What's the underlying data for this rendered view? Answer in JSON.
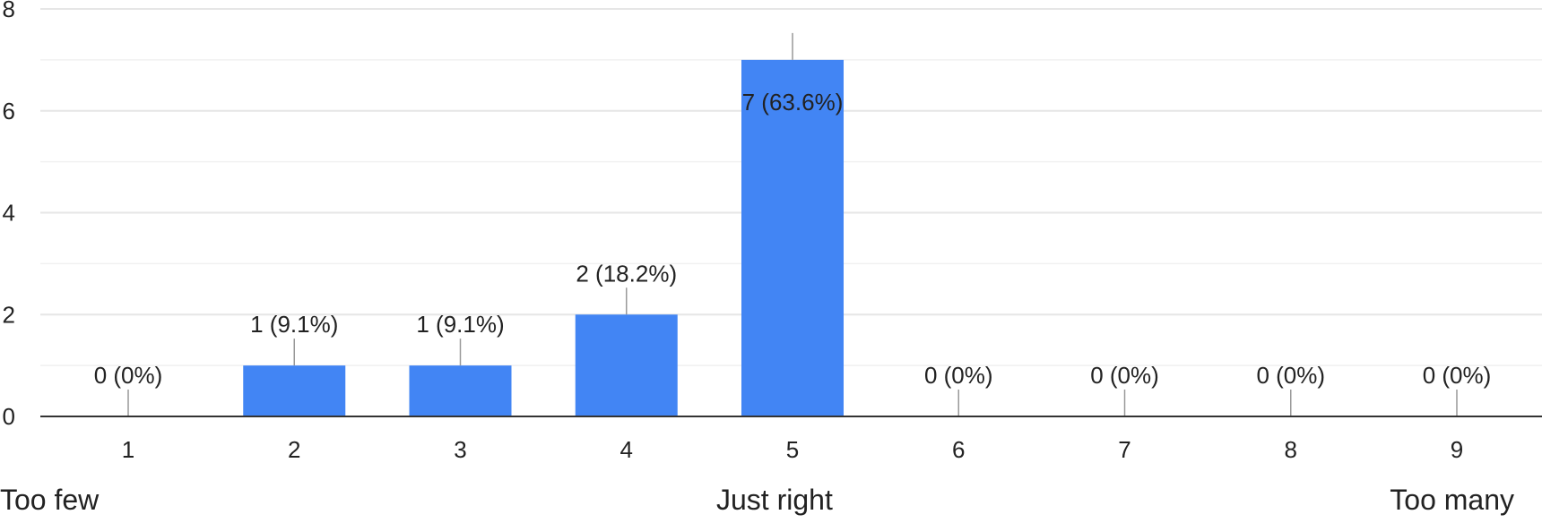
{
  "chart_data": {
    "type": "bar",
    "categories": [
      "1",
      "2",
      "3",
      "4",
      "5",
      "6",
      "7",
      "8",
      "9"
    ],
    "values": [
      0,
      1,
      1,
      2,
      7,
      0,
      0,
      0,
      0
    ],
    "data_labels": [
      "0 (0%)",
      "1 (9.1%)",
      "1 (9.1%)",
      "2 (18.2%)",
      "7 (63.6%)",
      "0 (0%)",
      "0 (0%)",
      "0 (0%)",
      "0 (0%)"
    ],
    "y_ticks": [
      "0",
      "2",
      "4",
      "6",
      "8"
    ],
    "ylim": [
      0,
      8
    ],
    "grid": true,
    "colors": {
      "bar": "#4285f4",
      "grid": "#e6e6e6",
      "axis": "#333333",
      "text": "#222222",
      "label_stem": "#999999"
    }
  },
  "scale_labels": {
    "left": "Too few",
    "middle": "Just right",
    "right": "Too many"
  }
}
